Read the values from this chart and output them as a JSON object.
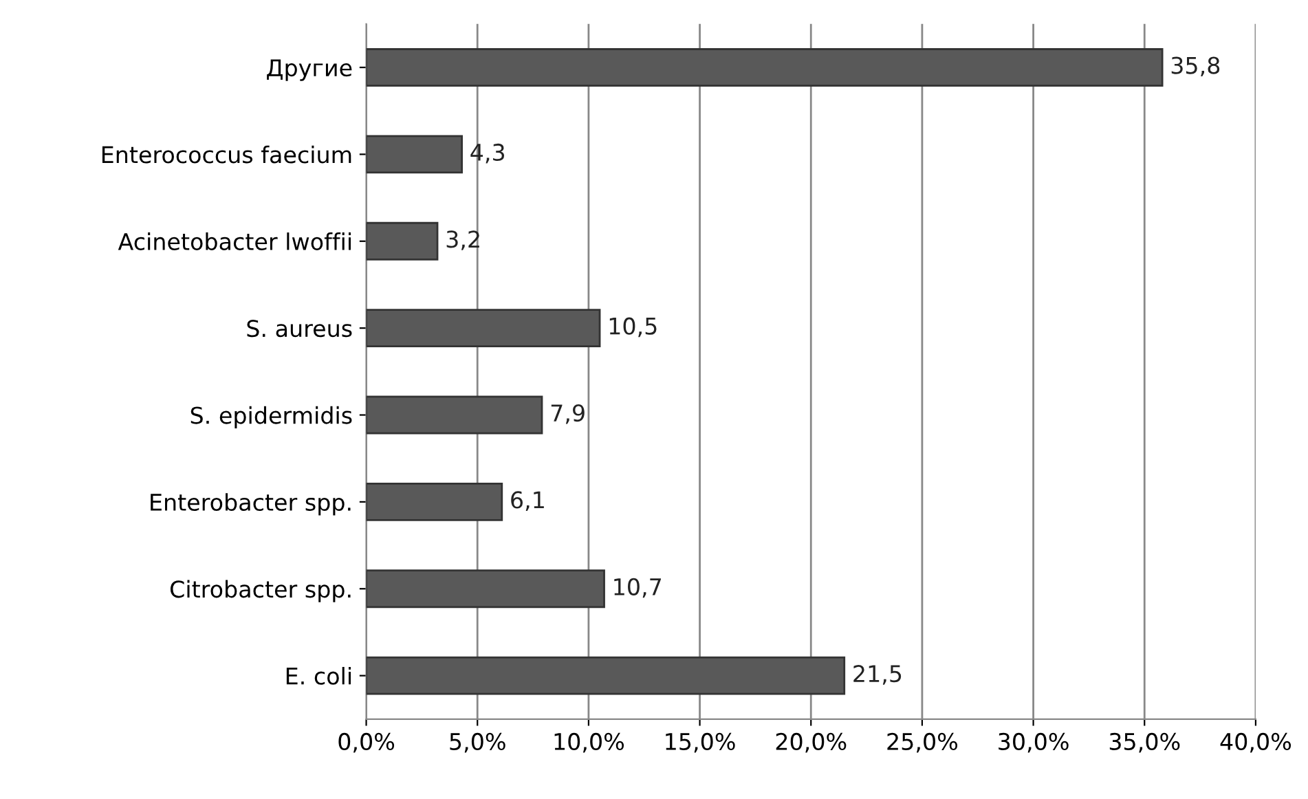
{
  "chart_data": {
    "type": "bar",
    "orientation": "horizontal",
    "categories": [
      "Другие",
      "Enterococcus faecium",
      "Acinetobacter lwoffii",
      "S. aureus",
      "S. epidermidis",
      "Enterobacter spp.",
      "Citrobacter spp.",
      "E. coli"
    ],
    "values": [
      35.8,
      4.3,
      3.2,
      10.5,
      7.9,
      6.1,
      10.7,
      21.5
    ],
    "value_labels": [
      "35,8",
      "4,3",
      "3,2",
      "10,5",
      "7,9",
      "6,1",
      "10,7",
      "21,5"
    ],
    "color": "#595959",
    "xlim": [
      0,
      40
    ],
    "xticks": [
      {
        "value": 0,
        "label": "0,0%"
      },
      {
        "value": 5,
        "label": "5,0%"
      },
      {
        "value": 10,
        "label": "10,0%"
      },
      {
        "value": 15,
        "label": "15,0%"
      },
      {
        "value": 20,
        "label": "20,0%"
      },
      {
        "value": 25,
        "label": "25,0%"
      },
      {
        "value": 30,
        "label": "30,0%"
      },
      {
        "value": 35,
        "label": "35,0%"
      },
      {
        "value": 40,
        "label": "40,0%"
      }
    ],
    "grid": "x"
  }
}
